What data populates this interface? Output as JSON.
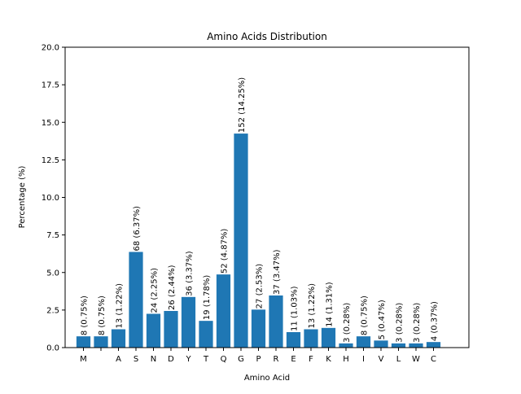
{
  "chart_data": {
    "type": "bar",
    "title": "Amino Acids Distribution",
    "xlabel": "Amino Acid",
    "ylabel": "Percentage (%)",
    "ylim": [
      0,
      20
    ],
    "yticks": [
      "0.0",
      "2.5",
      "5.0",
      "7.5",
      "10.0",
      "12.5",
      "15.0",
      "17.5",
      "20.0"
    ],
    "grid": false,
    "legend": "none",
    "bar_color": "#1f77b4",
    "categories": [
      "M",
      "",
      "A",
      "S",
      "N",
      "D",
      "Y",
      "T",
      "Q",
      "G",
      "P",
      "R",
      "E",
      "F",
      "K",
      "H",
      "I",
      "V",
      "L",
      "W",
      "C"
    ],
    "values": [
      0.75,
      0.75,
      1.22,
      6.37,
      2.25,
      2.44,
      3.37,
      1.78,
      4.87,
      14.25,
      2.53,
      3.47,
      1.03,
      1.22,
      1.31,
      0.28,
      0.75,
      0.47,
      0.28,
      0.28,
      0.37
    ],
    "data_labels": [
      "8 (0.75%)",
      "8 (0.75%)",
      "13 (1.22%)",
      "68 (6.37%)",
      "24 (2.25%)",
      "26 (2.44%)",
      "36 (3.37%)",
      "19 (1.78%)",
      "52 (4.87%)",
      "152 (14.25%)",
      "27 (2.53%)",
      "37 (3.47%)",
      "11 (1.03%)",
      "13 (1.22%)",
      "14 (1.31%)",
      "3 (0.28%)",
      "8 (0.75%)",
      "5 (0.47%)",
      "3 (0.28%)",
      "3 (0.28%)",
      "4 (0.37%)"
    ]
  }
}
